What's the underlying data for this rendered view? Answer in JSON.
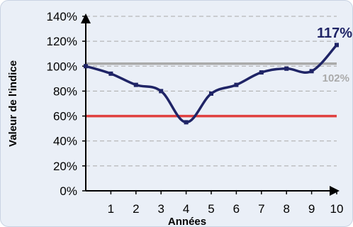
{
  "chart_data": {
    "type": "line",
    "title": "",
    "xlabel": "Années",
    "ylabel": "Valeur de l'indice",
    "x": [
      0,
      1,
      2,
      3,
      4,
      5,
      6,
      7,
      8,
      9,
      10
    ],
    "x_tick_labels": [
      "1",
      "2",
      "3",
      "4",
      "5",
      "6",
      "7",
      "8",
      "9",
      "10"
    ],
    "y_tick_labels": [
      "0%",
      "20%",
      "40%",
      "60%",
      "80%",
      "100%",
      "120%",
      "140%"
    ],
    "ylim": [
      0,
      140
    ],
    "xlim": [
      0,
      10
    ],
    "grid": true,
    "series": [
      {
        "values": [
          100,
          94,
          85,
          80,
          55,
          78,
          85,
          95,
          98,
          96,
          117
        ],
        "color": "#1f2466"
      }
    ],
    "reference_lines": [
      {
        "value": 102,
        "label": "102%",
        "color": "#aaaaaa"
      },
      {
        "value": 60,
        "label": "",
        "color": "#e04040"
      }
    ],
    "annotations": [
      {
        "text": "117%",
        "color": "#1f2466"
      }
    ]
  }
}
